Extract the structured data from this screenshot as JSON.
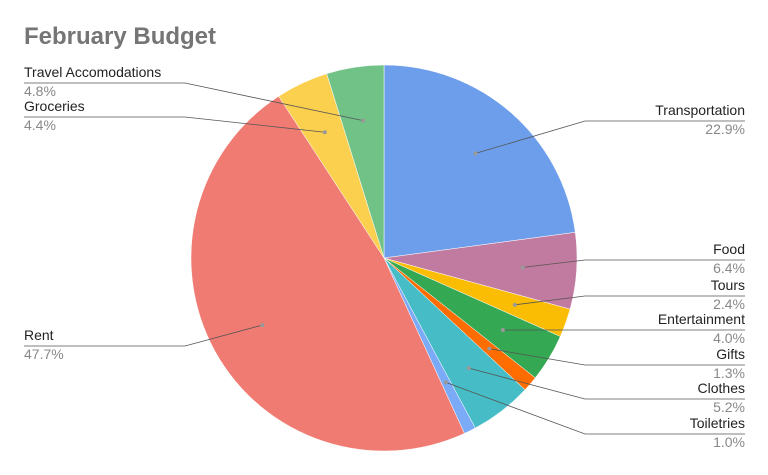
{
  "chart_data": {
    "type": "pie",
    "title": "February Budget",
    "categories": [
      "Transportation",
      "Food",
      "Tours",
      "Entertainment",
      "Gifts",
      "Clothes",
      "Toiletries",
      "Rent",
      "Groceries",
      "Travel Accomodations"
    ],
    "values": [
      22.9,
      6.4,
      2.4,
      4.0,
      1.3,
      5.2,
      1.0,
      47.7,
      4.4,
      4.8
    ],
    "value_labels": [
      "22.9%",
      "6.4%",
      "2.4%",
      "4.0%",
      "1.3%",
      "5.2%",
      "1.0%",
      "47.7%",
      "4.4%",
      "4.8%"
    ],
    "colors": [
      "#6d9eeb",
      "#c27ba0",
      "#fbbc04",
      "#34a853",
      "#ff6d01",
      "#46bdc6",
      "#7baaf7",
      "#f07b72",
      "#fcd04f",
      "#71c287"
    ]
  }
}
